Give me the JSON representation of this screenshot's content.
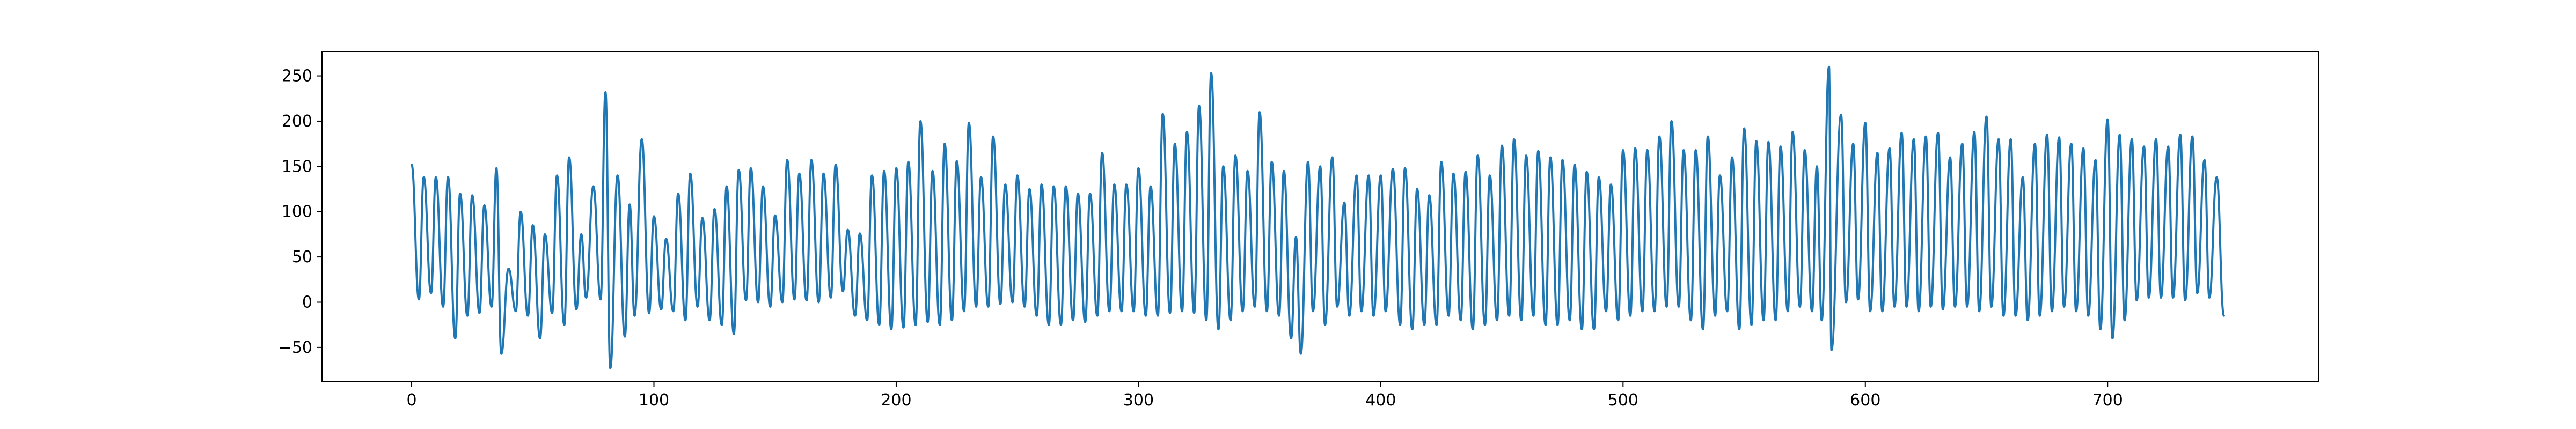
{
  "chart_data": {
    "type": "line",
    "title": "",
    "xlabel": "",
    "ylabel": "",
    "xlim": [
      -37,
      787
    ],
    "ylim": [
      -88,
      277
    ],
    "xticks": [
      0,
      100,
      200,
      300,
      400,
      500,
      600,
      700
    ],
    "yticks": [
      -50,
      0,
      50,
      100,
      150,
      200,
      250
    ],
    "grid": false,
    "line_color": "#1f77b4",
    "series": [
      {
        "peaks": [
          [
            0,
            152
          ],
          [
            5,
            138
          ],
          [
            10,
            138
          ],
          [
            15,
            138
          ],
          [
            20,
            120
          ],
          [
            25,
            118
          ],
          [
            30,
            107
          ],
          [
            35,
            148
          ],
          [
            40,
            37
          ],
          [
            45,
            100
          ],
          [
            50,
            85
          ],
          [
            55,
            75
          ],
          [
            60,
            140
          ],
          [
            65,
            160
          ],
          [
            70,
            75
          ],
          [
            75,
            128
          ],
          [
            80,
            232
          ],
          [
            85,
            140
          ],
          [
            90,
            108
          ],
          [
            95,
            180
          ],
          [
            100,
            95
          ],
          [
            105,
            70
          ],
          [
            110,
            120
          ],
          [
            115,
            142
          ],
          [
            120,
            93
          ],
          [
            125,
            103
          ],
          [
            130,
            128
          ],
          [
            135,
            146
          ],
          [
            140,
            148
          ],
          [
            145,
            128
          ],
          [
            150,
            96
          ],
          [
            155,
            157
          ],
          [
            160,
            142
          ],
          [
            165,
            157
          ],
          [
            170,
            142
          ],
          [
            175,
            152
          ],
          [
            180,
            80
          ],
          [
            185,
            76
          ],
          [
            190,
            140
          ],
          [
            195,
            145
          ],
          [
            200,
            148
          ],
          [
            205,
            155
          ],
          [
            210,
            200
          ],
          [
            215,
            145
          ],
          [
            220,
            175
          ],
          [
            225,
            156
          ],
          [
            230,
            198
          ],
          [
            235,
            138
          ],
          [
            240,
            183
          ],
          [
            245,
            130
          ],
          [
            250,
            140
          ],
          [
            255,
            125
          ],
          [
            260,
            130
          ],
          [
            265,
            128
          ],
          [
            270,
            128
          ],
          [
            275,
            120
          ],
          [
            280,
            120
          ],
          [
            285,
            165
          ],
          [
            290,
            130
          ],
          [
            295,
            130
          ],
          [
            300,
            148
          ],
          [
            305,
            128
          ],
          [
            310,
            208
          ],
          [
            315,
            175
          ],
          [
            320,
            188
          ],
          [
            325,
            217
          ],
          [
            330,
            253
          ],
          [
            335,
            150
          ],
          [
            340,
            162
          ],
          [
            345,
            145
          ],
          [
            350,
            210
          ],
          [
            355,
            155
          ],
          [
            360,
            145
          ],
          [
            365,
            72
          ],
          [
            370,
            155
          ],
          [
            375,
            150
          ],
          [
            380,
            160
          ],
          [
            385,
            110
          ],
          [
            390,
            140
          ],
          [
            395,
            140
          ],
          [
            400,
            140
          ],
          [
            405,
            147
          ],
          [
            410,
            148
          ],
          [
            415,
            125
          ],
          [
            420,
            118
          ],
          [
            425,
            155
          ],
          [
            430,
            142
          ],
          [
            435,
            144
          ],
          [
            440,
            162
          ],
          [
            445,
            140
          ],
          [
            450,
            173
          ],
          [
            455,
            180
          ],
          [
            460,
            162
          ],
          [
            465,
            167
          ],
          [
            470,
            160
          ],
          [
            475,
            157
          ],
          [
            480,
            152
          ],
          [
            485,
            144
          ],
          [
            490,
            138
          ],
          [
            495,
            130
          ],
          [
            500,
            168
          ],
          [
            505,
            170
          ],
          [
            510,
            168
          ],
          [
            515,
            183
          ],
          [
            520,
            200
          ],
          [
            525,
            168
          ],
          [
            530,
            168
          ],
          [
            535,
            183
          ],
          [
            540,
            140
          ],
          [
            545,
            160
          ],
          [
            550,
            192
          ],
          [
            555,
            178
          ],
          [
            560,
            177
          ],
          [
            565,
            172
          ],
          [
            570,
            188
          ],
          [
            575,
            168
          ],
          [
            580,
            150
          ],
          [
            585,
            260
          ],
          [
            590,
            207
          ],
          [
            595,
            175
          ],
          [
            600,
            198
          ],
          [
            605,
            165
          ],
          [
            610,
            170
          ],
          [
            615,
            187
          ],
          [
            620,
            180
          ],
          [
            625,
            183
          ],
          [
            630,
            187
          ],
          [
            635,
            160
          ],
          [
            640,
            175
          ],
          [
            645,
            188
          ],
          [
            650,
            205
          ],
          [
            655,
            180
          ],
          [
            660,
            180
          ],
          [
            665,
            138
          ],
          [
            670,
            175
          ],
          [
            675,
            185
          ],
          [
            680,
            182
          ],
          [
            685,
            175
          ],
          [
            690,
            170
          ],
          [
            695,
            157
          ],
          [
            700,
            202
          ],
          [
            705,
            185
          ],
          [
            710,
            180
          ],
          [
            715,
            172
          ],
          [
            720,
            180
          ],
          [
            725,
            172
          ],
          [
            730,
            185
          ],
          [
            735,
            183
          ],
          [
            740,
            157
          ],
          [
            745,
            138
          ]
        ],
        "troughs": [
          [
            3,
            3
          ],
          [
            8,
            10
          ],
          [
            13,
            -5
          ],
          [
            18,
            -40
          ],
          [
            23,
            -15
          ],
          [
            28,
            -12
          ],
          [
            33,
            -5
          ],
          [
            37,
            -57
          ],
          [
            43,
            -10
          ],
          [
            48,
            -15
          ],
          [
            53,
            -40
          ],
          [
            58,
            -12
          ],
          [
            63,
            -25
          ],
          [
            68,
            -8
          ],
          [
            72,
            5
          ],
          [
            78,
            3
          ],
          [
            82,
            -73
          ],
          [
            88,
            -38
          ],
          [
            92,
            -15
          ],
          [
            98,
            -12
          ],
          [
            103,
            -8
          ],
          [
            108,
            -10
          ],
          [
            113,
            -20
          ],
          [
            118,
            -5
          ],
          [
            123,
            -20
          ],
          [
            128,
            -25
          ],
          [
            133,
            -35
          ],
          [
            138,
            2
          ],
          [
            143,
            0
          ],
          [
            148,
            -5
          ],
          [
            153,
            0
          ],
          [
            158,
            3
          ],
          [
            163,
            2
          ],
          [
            168,
            0
          ],
          [
            173,
            5
          ],
          [
            178,
            12
          ],
          [
            183,
            -15
          ],
          [
            188,
            -20
          ],
          [
            193,
            -25
          ],
          [
            198,
            -30
          ],
          [
            203,
            -28
          ],
          [
            208,
            -25
          ],
          [
            213,
            -22
          ],
          [
            218,
            -25
          ],
          [
            223,
            -20
          ],
          [
            228,
            -10
          ],
          [
            233,
            -5
          ],
          [
            238,
            -5
          ],
          [
            243,
            -2
          ],
          [
            248,
            0
          ],
          [
            253,
            -5
          ],
          [
            258,
            -15
          ],
          [
            263,
            -25
          ],
          [
            268,
            -25
          ],
          [
            273,
            -20
          ],
          [
            278,
            -22
          ],
          [
            283,
            -15
          ],
          [
            288,
            -10
          ],
          [
            293,
            -10
          ],
          [
            298,
            -10
          ],
          [
            303,
            -15
          ],
          [
            308,
            -15
          ],
          [
            313,
            -12
          ],
          [
            318,
            -10
          ],
          [
            323,
            -12
          ],
          [
            328,
            -20
          ],
          [
            333,
            -30
          ],
          [
            338,
            -20
          ],
          [
            343,
            -10
          ],
          [
            348,
            -5
          ],
          [
            353,
            -10
          ],
          [
            358,
            -15
          ],
          [
            363,
            -40
          ],
          [
            367,
            -57
          ],
          [
            372,
            -10
          ],
          [
            377,
            -25
          ],
          [
            382,
            -5
          ],
          [
            387,
            -15
          ],
          [
            392,
            -10
          ],
          [
            397,
            -15
          ],
          [
            402,
            -10
          ],
          [
            408,
            -25
          ],
          [
            413,
            -30
          ],
          [
            418,
            -25
          ],
          [
            423,
            -25
          ],
          [
            428,
            -15
          ],
          [
            433,
            -20
          ],
          [
            438,
            -30
          ],
          [
            443,
            -25
          ],
          [
            448,
            -20
          ],
          [
            453,
            -15
          ],
          [
            458,
            -20
          ],
          [
            463,
            -15
          ],
          [
            468,
            -25
          ],
          [
            473,
            -25
          ],
          [
            478,
            -20
          ],
          [
            483,
            -30
          ],
          [
            488,
            -30
          ],
          [
            493,
            -10
          ],
          [
            498,
            -20
          ],
          [
            503,
            -15
          ],
          [
            508,
            -10
          ],
          [
            513,
            -10
          ],
          [
            518,
            -5
          ],
          [
            523,
            -5
          ],
          [
            528,
            -20
          ],
          [
            533,
            -30
          ],
          [
            538,
            -15
          ],
          [
            543,
            -10
          ],
          [
            548,
            -30
          ],
          [
            553,
            -25
          ],
          [
            558,
            -20
          ],
          [
            563,
            -20
          ],
          [
            568,
            -10
          ],
          [
            573,
            -5
          ],
          [
            578,
            -10
          ],
          [
            582,
            -20
          ],
          [
            586,
            -53
          ],
          [
            592,
            0
          ],
          [
            597,
            3
          ],
          [
            602,
            -10
          ],
          [
            607,
            -10
          ],
          [
            612,
            -5
          ],
          [
            617,
            -5
          ],
          [
            622,
            -10
          ],
          [
            627,
            -5
          ],
          [
            632,
            -8
          ],
          [
            637,
            -5
          ],
          [
            642,
            -5
          ],
          [
            647,
            -10
          ],
          [
            652,
            -5
          ],
          [
            657,
            -15
          ],
          [
            662,
            -15
          ],
          [
            667,
            -20
          ],
          [
            672,
            -15
          ],
          [
            677,
            -10
          ],
          [
            682,
            -5
          ],
          [
            687,
            -10
          ],
          [
            692,
            -15
          ],
          [
            697,
            -30
          ],
          [
            702,
            -40
          ],
          [
            707,
            -20
          ],
          [
            712,
            2
          ],
          [
            717,
            5
          ],
          [
            722,
            5
          ],
          [
            727,
            5
          ],
          [
            732,
            2
          ],
          [
            737,
            10
          ],
          [
            742,
            5
          ],
          [
            748,
            -15
          ]
        ]
      }
    ]
  }
}
